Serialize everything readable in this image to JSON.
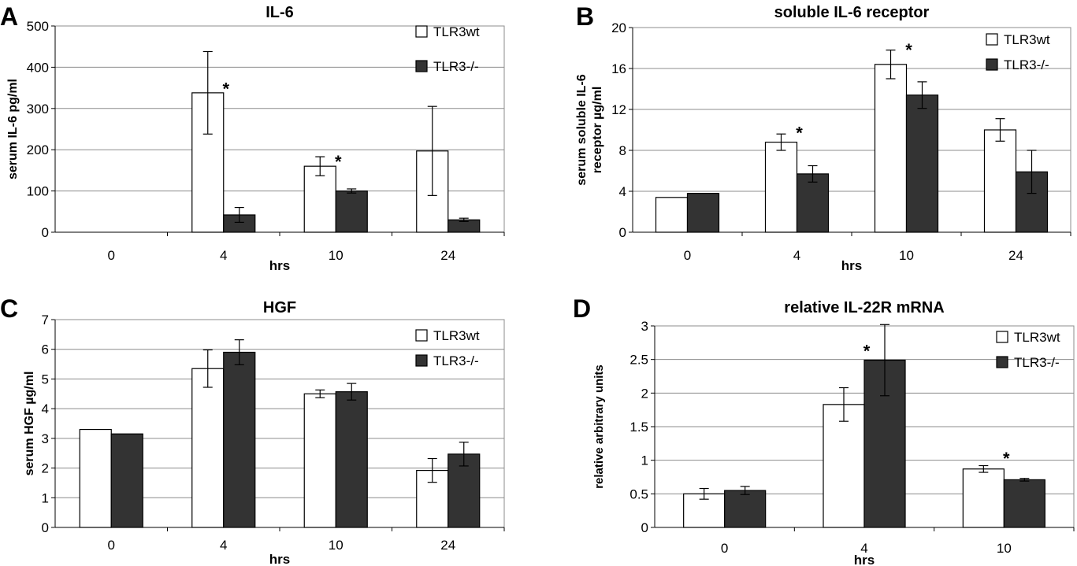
{
  "chart_data": [
    {
      "type": "bar",
      "panel_letter": "A",
      "title": "IL-6",
      "xlabel": "hrs",
      "ylabel": "serum IL-6 pg/ml",
      "categories": [
        "0",
        "4",
        "10",
        "24"
      ],
      "ylim": [
        0,
        500
      ],
      "yticks": [
        "0",
        "100",
        "200",
        "300",
        "400",
        "500"
      ],
      "grid": true,
      "legend_position": "top-right",
      "series": [
        {
          "name": "TLR3wt",
          "color": "#ffffff",
          "values": [
            0,
            338,
            160,
            197
          ],
          "errors": [
            0,
            100,
            23,
            108
          ]
        },
        {
          "name": "TLR3-/-",
          "color": "#333333",
          "values": [
            0,
            42,
            100,
            30
          ],
          "errors": [
            0,
            18,
            5,
            4
          ]
        }
      ],
      "annotations": [
        {
          "text": "*",
          "category": "4",
          "value": 360
        },
        {
          "text": "*",
          "category": "10",
          "value": 183
        }
      ]
    },
    {
      "type": "bar",
      "panel_letter": "B",
      "title": "soluble IL-6 receptor",
      "xlabel": "hrs",
      "ylabel": "serum soluble IL-6 receptor µg/ml",
      "ylabel_lines": [
        "serum soluble IL-6",
        "receptor µg/ml"
      ],
      "categories": [
        "0",
        "4",
        "10",
        "24"
      ],
      "ylim": [
        0,
        20
      ],
      "yticks": [
        "0",
        "4",
        "8",
        "12",
        "16",
        "20"
      ],
      "grid": true,
      "legend_position": "top-right",
      "series": [
        {
          "name": "TLR3wt",
          "color": "#ffffff",
          "values": [
            3.4,
            8.8,
            16.4,
            10.0
          ],
          "errors": [
            0,
            0.8,
            1.4,
            1.1
          ]
        },
        {
          "name": "TLR3-/-",
          "color": "#333333",
          "values": [
            3.8,
            5.7,
            13.4,
            5.9
          ],
          "errors": [
            0,
            0.8,
            1.3,
            2.1
          ]
        }
      ],
      "annotations": [
        {
          "text": "*",
          "category": "4",
          "value": 10.2
        },
        {
          "text": "*",
          "category": "10",
          "value": 18.3
        }
      ]
    },
    {
      "type": "bar",
      "panel_letter": "C",
      "title": "HGF",
      "xlabel": "hrs",
      "ylabel": "serum HGF µg/ml",
      "categories": [
        "0",
        "4",
        "10",
        "24"
      ],
      "ylim": [
        0,
        7
      ],
      "yticks": [
        "0",
        "1",
        "2",
        "3",
        "4",
        "5",
        "6",
        "7"
      ],
      "grid": true,
      "legend_position": "top-right",
      "series": [
        {
          "name": "TLR3wt",
          "color": "#ffffff",
          "values": [
            3.3,
            5.35,
            4.5,
            1.92
          ],
          "errors": [
            0,
            0.63,
            0.13,
            0.4
          ]
        },
        {
          "name": "TLR3-/-",
          "color": "#333333",
          "values": [
            3.15,
            5.9,
            4.57,
            2.47
          ],
          "errors": [
            0,
            0.42,
            0.28,
            0.4
          ]
        }
      ],
      "annotations": []
    },
    {
      "type": "bar",
      "panel_letter": "D",
      "title": "relative IL-22R mRNA",
      "xlabel": "hrs",
      "ylabel": "relative arbitrary units",
      "categories": [
        "0",
        "4",
        "10"
      ],
      "ylim": [
        0,
        3
      ],
      "yticks": [
        "0",
        "0.5",
        "1",
        "1.5",
        "2",
        "2.5",
        "3"
      ],
      "grid": true,
      "legend_position": "top-right",
      "series": [
        {
          "name": "TLR3wt",
          "color": "#ffffff",
          "values": [
            0.5,
            1.83,
            0.87
          ],
          "errors": [
            0.08,
            0.25,
            0.05
          ]
        },
        {
          "name": "TLR3-/-",
          "color": "#333333",
          "values": [
            0.55,
            2.49,
            0.71
          ],
          "errors": [
            0.06,
            0.53,
            0.02
          ]
        }
      ],
      "annotations": [
        {
          "text": "*",
          "category": "4",
          "value": 2.7
        },
        {
          "text": "*",
          "category": "10",
          "value": 1.1
        }
      ]
    }
  ]
}
